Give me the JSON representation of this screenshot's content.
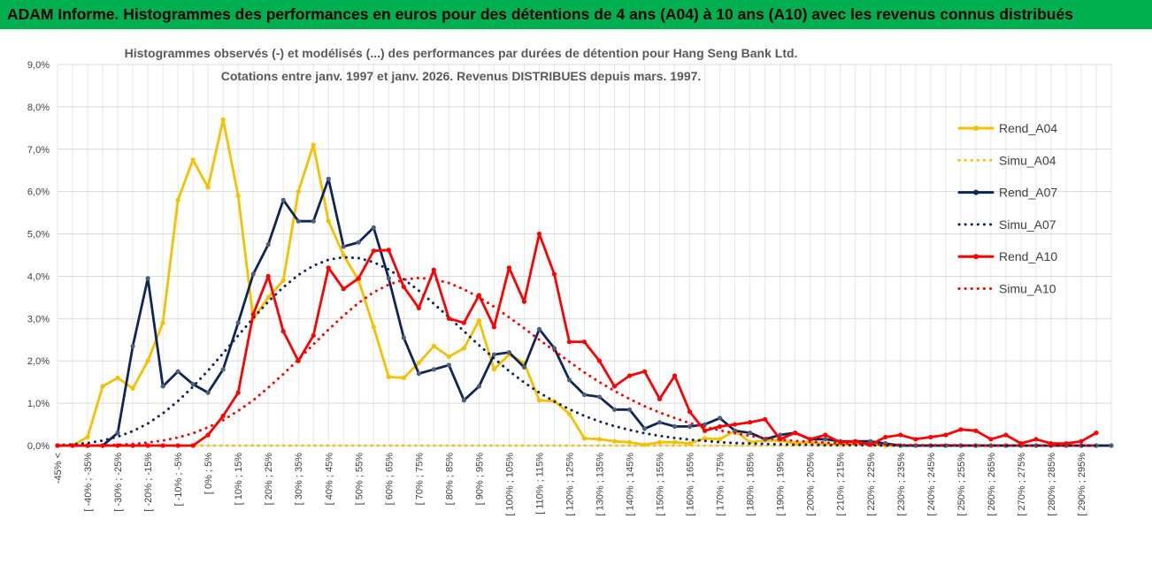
{
  "header": {
    "title": "ADAM Informe. Histogrammes des performances en euros pour des détentions de 4 ans (A04) à 10 ans (A10) avec les revenus connus distribués"
  },
  "chart_data": {
    "type": "line",
    "subtitle": [
      "Histogrammes observés (-) et modélisés (...) des performances par durées de détention pour Hang Seng Bank Ltd.",
      "Cotations entre janv. 1997 et janv. 2026. Revenus DISTRIBUES depuis mars. 1997."
    ],
    "ylim": [
      0,
      9
    ],
    "y_ticks": [
      "0,0%",
      "1,0%",
      "2,0%",
      "3,0%",
      "4,0%",
      "5,0%",
      "6,0%",
      "7,0%",
      "8,0%",
      "9,0%"
    ],
    "x_tick_labels": [
      "-45% <",
      "[ -40% ; -35%",
      "[ -30% ; -25%",
      "[ -20% ; -15%",
      "[ -10% ; -5%",
      "[ 0% ; 5%",
      "[ 10% ; 15%",
      "[ 20% ; 25%",
      "[ 30% ; 35%",
      "[ 40% ; 45%",
      "[ 50% ; 55%",
      "[ 60% ; 65%",
      "[ 70% ; 75%",
      "[ 80% ; 85%",
      "[ 90% ; 95%",
      "[ 100% ; 105%",
      "[ 110% ; 115%",
      "[ 120% ; 125%",
      "[ 130% ; 135%",
      "[ 140% ; 145%",
      "[ 150% ; 155%",
      "[ 160% ; 165%",
      "[ 170% ; 175%",
      "[ 180% ; 185%",
      "[ 190% ; 195%",
      "[ 200% ; 205%",
      "[ 210% ; 215%",
      "[ 220% ; 225%",
      "[ 230% ; 235%",
      "[ 240% ; 245%",
      "[ 250% ; 255%",
      "[ 260% ; 265%",
      "[ 270% ; 275%",
      "[ 280% ; 285%",
      "[ 290% ; 295%"
    ],
    "grid": true,
    "legend_position": "right",
    "series": [
      {
        "name": "Rend_A04",
        "style": "solid",
        "color": "#f5c000",
        "values": [
          0,
          0,
          0.2,
          1.4,
          1.6,
          1.35,
          2.0,
          2.9,
          5.8,
          6.75,
          6.1,
          7.7,
          5.9,
          3.0,
          3.5,
          3.9,
          6.0,
          7.1,
          5.3,
          4.5,
          3.9,
          2.8,
          1.62,
          1.6,
          1.95,
          2.35,
          2.1,
          2.3,
          2.95,
          1.8,
          2.15,
          1.95,
          1.07,
          1.05,
          0.75,
          0.17,
          0.15,
          0.1,
          0.08,
          0.02,
          0.08,
          0.08,
          0.05,
          0.17,
          0.15,
          0.35,
          0.08,
          0.12,
          0.12,
          0.05,
          0.08,
          0.03,
          0.03,
          0.05,
          0.05,
          0,
          0,
          0,
          0,
          0,
          0,
          0,
          0,
          0,
          0,
          0,
          0,
          0,
          0,
          0,
          0
        ]
      },
      {
        "name": "Simu_A04",
        "style": "dotted",
        "color": "#f5c000",
        "values": [
          0,
          0,
          0,
          0,
          0,
          0,
          0,
          0,
          0,
          0,
          0,
          0,
          0,
          0,
          0,
          0,
          0,
          0,
          0,
          0,
          0,
          0,
          0,
          0,
          0,
          0,
          0,
          0,
          0,
          0,
          0,
          0,
          0,
          0,
          0,
          0,
          0,
          0,
          0,
          0,
          0,
          0,
          0,
          0,
          0,
          0,
          0,
          0,
          0,
          0,
          0,
          0,
          0,
          0,
          0,
          0,
          0,
          0,
          0,
          0,
          0,
          0,
          0,
          0,
          0,
          0,
          0,
          0,
          0,
          0,
          0
        ]
      },
      {
        "name": "Rend_A07",
        "style": "solid",
        "color": "#0f2557",
        "values": [
          0,
          0,
          0,
          0,
          0.3,
          2.35,
          3.95,
          1.4,
          1.75,
          1.45,
          1.25,
          1.8,
          2.9,
          4.05,
          4.75,
          5.8,
          5.3,
          5.3,
          6.3,
          4.7,
          4.8,
          5.15,
          3.95,
          2.55,
          1.7,
          1.8,
          1.9,
          1.07,
          1.4,
          2.15,
          2.2,
          1.85,
          2.75,
          2.3,
          1.55,
          1.2,
          1.15,
          0.85,
          0.85,
          0.4,
          0.55,
          0.45,
          0.45,
          0.5,
          0.65,
          0.35,
          0.3,
          0.15,
          0.25,
          0.3,
          0.15,
          0.15,
          0.1,
          0.1,
          0.1,
          0.05,
          0,
          0,
          0,
          0,
          0,
          0,
          0,
          0,
          0,
          0,
          0,
          0,
          0,
          0,
          0
        ]
      },
      {
        "name": "Simu_A07",
        "style": "dotted",
        "color": "#0f2557",
        "values": [
          0.01,
          0.03,
          0.06,
          0.12,
          0.21,
          0.34,
          0.52,
          0.76,
          1.05,
          1.39,
          1.77,
          2.18,
          2.6,
          3.01,
          3.4,
          3.74,
          4.03,
          4.25,
          4.39,
          4.45,
          4.43,
          4.33,
          4.16,
          3.93,
          3.66,
          3.35,
          3.03,
          2.7,
          2.37,
          2.06,
          1.76,
          1.49,
          1.25,
          1.04,
          0.86,
          0.7,
          0.57,
          0.46,
          0.37,
          0.29,
          0.23,
          0.18,
          0.14,
          0.11,
          0.08,
          0.06,
          0.05,
          0.04,
          0.03,
          0.02,
          0.02,
          0.01,
          0.01,
          0.01,
          0.01,
          0,
          0,
          0,
          0,
          0,
          0,
          0,
          0,
          0,
          0,
          0,
          0,
          0,
          0,
          0,
          0
        ]
      },
      {
        "name": "Rend_A10",
        "style": "solid",
        "color": "#ff0000",
        "values": [
          0,
          0,
          0,
          0,
          0,
          0,
          0,
          0,
          0,
          0,
          0.25,
          0.7,
          1.25,
          3.1,
          4.0,
          2.7,
          2.0,
          2.6,
          4.2,
          3.7,
          3.95,
          4.6,
          4.62,
          3.75,
          3.25,
          4.15,
          3.0,
          2.9,
          3.55,
          2.8,
          4.2,
          3.4,
          5.0,
          4.05,
          2.45,
          2.45,
          2.0,
          1.4,
          1.65,
          1.75,
          1.1,
          1.65,
          0.8,
          0.35,
          0.45,
          0.5,
          0.55,
          0.62,
          0.15,
          0.3,
          0.15,
          0.25,
          0.08,
          0.1,
          0.02,
          0.2,
          0.25,
          0.15,
          0.2,
          0.25,
          0.38,
          0.35,
          0.15,
          0.25,
          0.05,
          0.15,
          0.05,
          0.05,
          0.1,
          0.3
        ]
      },
      {
        "name": "Simu_A10",
        "style": "dotted",
        "color": "#ff0000",
        "values": [
          0,
          0,
          0,
          0,
          0.02,
          0.04,
          0.07,
          0.12,
          0.19,
          0.29,
          0.43,
          0.6,
          0.82,
          1.07,
          1.37,
          1.69,
          2.03,
          2.39,
          2.74,
          3.07,
          3.37,
          3.62,
          3.8,
          3.92,
          3.96,
          3.93,
          3.84,
          3.69,
          3.5,
          3.28,
          3.03,
          2.77,
          2.5,
          2.24,
          1.98,
          1.73,
          1.5,
          1.29,
          1.1,
          0.93,
          0.78,
          0.65,
          0.53,
          0.44,
          0.36,
          0.29,
          0.23,
          0.18,
          0.14,
          0.11,
          0.09,
          0.07,
          0.05,
          0.04,
          0.03,
          0.02,
          0.02,
          0.01,
          0.01,
          0.01,
          0.01,
          0,
          0,
          0,
          0,
          0,
          0,
          0,
          0,
          0
        ]
      }
    ]
  }
}
